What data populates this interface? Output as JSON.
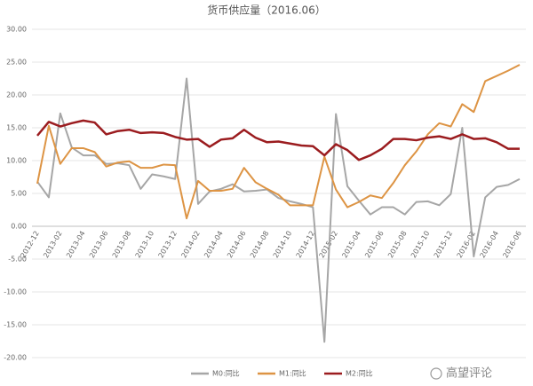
{
  "chart_data": {
    "type": "line",
    "title": "货币供应量（2016.06）",
    "categories": [
      "2012-12",
      null,
      "2013-02",
      null,
      "2013-04",
      null,
      "2013-06",
      null,
      "2013-08",
      null,
      "2013-10",
      null,
      "2013-12",
      null,
      "2014-02",
      null,
      "2014-04",
      null,
      "2014-06",
      null,
      "2014-08",
      null,
      "2014-10",
      null,
      "2014-12",
      null,
      "2015-02",
      null,
      "2015-04",
      null,
      "2015-06",
      null,
      "2015-08",
      null,
      "2015-10",
      null,
      "2015-12",
      null,
      "2016-02",
      null,
      "2016-04",
      null,
      "2016-06"
    ],
    "series": [
      {
        "name": "M0:同比",
        "color": "#a6a6a6",
        "values": [
          6.8,
          4.4,
          17.2,
          12.0,
          10.8,
          10.8,
          9.5,
          9.6,
          9.3,
          5.7,
          7.9,
          7.6,
          7.2,
          22.5,
          3.4,
          5.3,
          5.7,
          6.4,
          5.3,
          5.4,
          5.6,
          4.3,
          3.8,
          3.4,
          2.9,
          -17.6,
          17.1,
          6.1,
          3.9,
          1.8,
          2.9,
          2.9,
          1.8,
          3.7,
          3.8,
          3.2,
          4.9,
          15.0,
          -4.6,
          4.4,
          6.0,
          6.3,
          7.2
        ]
      },
      {
        "name": "M1:同比",
        "color": "#dd9444",
        "values": [
          6.5,
          15.3,
          9.5,
          11.9,
          11.9,
          11.3,
          9.1,
          9.7,
          9.9,
          8.9,
          8.9,
          9.4,
          9.3,
          1.2,
          6.9,
          5.4,
          5.4,
          5.7,
          8.9,
          6.7,
          5.7,
          4.8,
          3.2,
          3.2,
          3.2,
          10.6,
          5.6,
          2.9,
          3.7,
          4.7,
          4.3,
          6.6,
          9.3,
          11.4,
          14.0,
          15.7,
          15.2,
          18.6,
          17.4,
          22.1,
          22.9,
          23.7,
          24.6
        ]
      },
      {
        "name": "M2:同比",
        "color": "#9b1c1f",
        "values": [
          13.8,
          15.9,
          15.2,
          15.7,
          16.1,
          15.8,
          14.0,
          14.5,
          14.7,
          14.2,
          14.3,
          14.2,
          13.6,
          13.2,
          13.3,
          12.1,
          13.2,
          13.4,
          14.7,
          13.5,
          12.8,
          12.9,
          12.6,
          12.3,
          12.2,
          10.8,
          12.5,
          11.6,
          10.1,
          10.8,
          11.8,
          13.3,
          13.3,
          13.1,
          13.5,
          13.7,
          13.3,
          14.0,
          13.3,
          13.4,
          12.8,
          11.8,
          11.8
        ]
      }
    ],
    "ylim": [
      -20,
      30
    ],
    "yticks": [
      {
        "value": -20,
        "label": "-20.00"
      },
      {
        "value": -15,
        "label": "-15.00"
      },
      {
        "value": -10,
        "label": "-10.00"
      },
      {
        "value": -5,
        "label": "-5.00"
      },
      {
        "value": 0,
        "label": "0.00"
      },
      {
        "value": 5,
        "label": "5.00"
      },
      {
        "value": 10,
        "label": "10.00"
      },
      {
        "value": 15,
        "label": "15.00"
      },
      {
        "value": 20,
        "label": "20.00"
      },
      {
        "value": 25,
        "label": "25.00"
      },
      {
        "value": 30,
        "label": "30.00"
      }
    ],
    "grid": true,
    "legend": "bottom",
    "watermark": "高望评论"
  }
}
